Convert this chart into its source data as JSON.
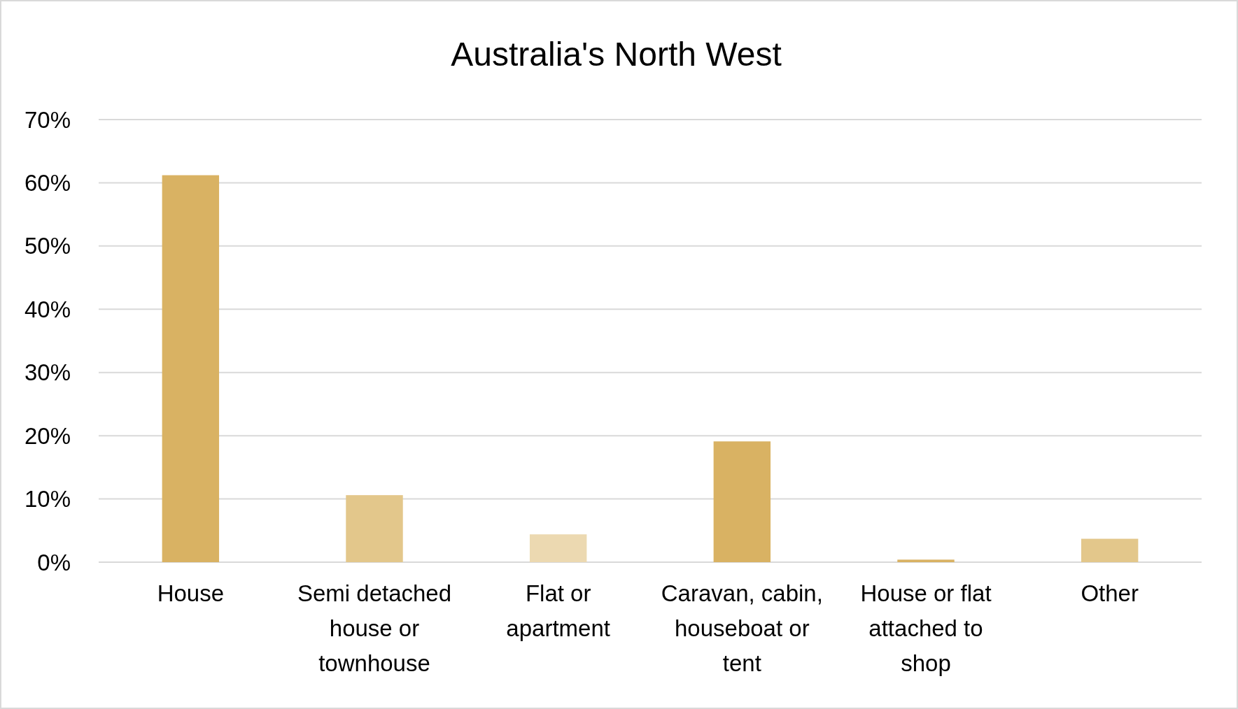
{
  "chart_data": {
    "type": "bar",
    "title": "Australia's North West",
    "categories": [
      "House",
      "Semi detached house or townhouse",
      "Flat or apartment",
      "Caravan, cabin, houseboat or tent",
      "House or flat attached to shop",
      "Other"
    ],
    "values": [
      61.2,
      10.6,
      4.4,
      19.1,
      0.4,
      3.7
    ],
    "colors": [
      "#d9b263",
      "#e3c78b",
      "#ecd9b1",
      "#d9b263",
      "#d9b263",
      "#e3c78b"
    ],
    "ylim": [
      0,
      70
    ],
    "yticks": [
      {
        "value": 0,
        "label": "0%"
      },
      {
        "value": 10,
        "label": "10%"
      },
      {
        "value": 20,
        "label": "20%"
      },
      {
        "value": 30,
        "label": "30%"
      },
      {
        "value": 40,
        "label": "40%"
      },
      {
        "value": 50,
        "label": "50%"
      },
      {
        "value": 60,
        "label": "60%"
      },
      {
        "value": 70,
        "label": "70%"
      }
    ],
    "grid": "y"
  }
}
